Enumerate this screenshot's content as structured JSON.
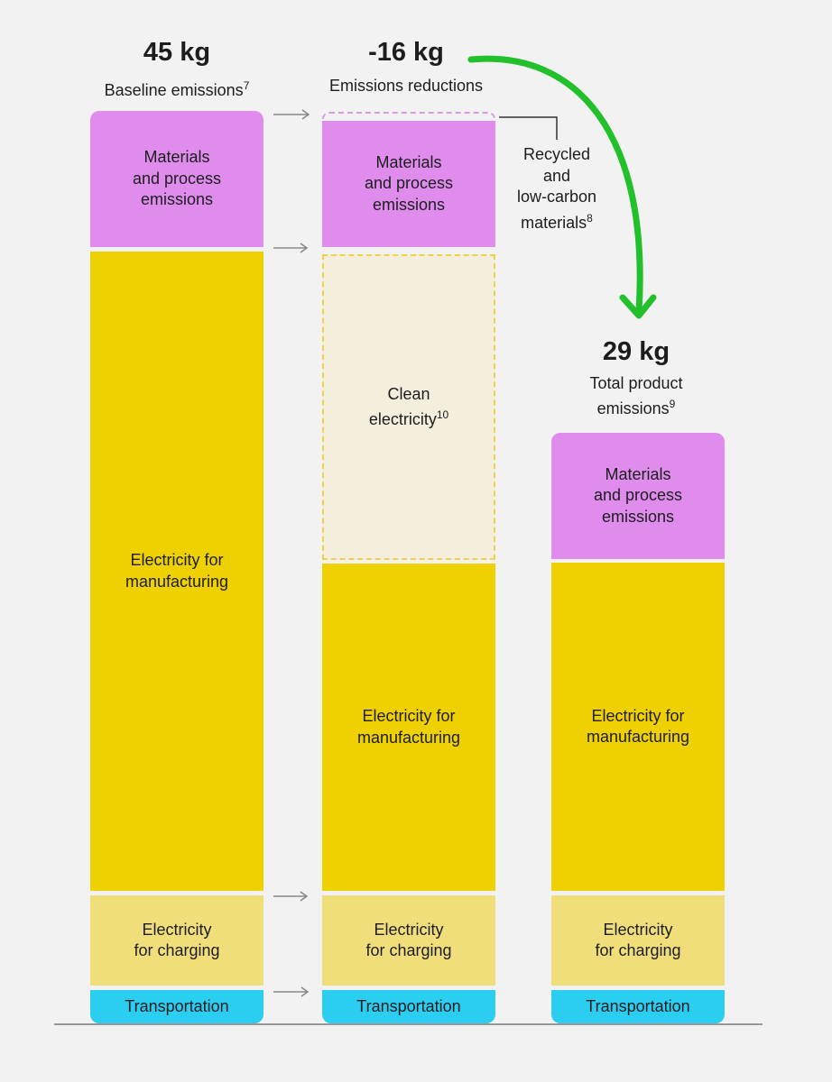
{
  "chart_data": {
    "type": "bar",
    "stacked": true,
    "title": "",
    "columns": [
      {
        "total": "45 kg",
        "label": "Baseline emissions",
        "footnote": "7",
        "segments": [
          "Materials\nand process\nemissions",
          "Electricity for\nmanufacturing",
          "Electricity\nfor charging",
          "Transportation"
        ]
      },
      {
        "total": "-16 kg",
        "label": "Emissions reductions",
        "footnote": "",
        "segments": [
          "Materials\nand process\nemissions",
          "Electricity for\nmanufacturing",
          "Electricity\nfor charging",
          "Transportation"
        ],
        "reductions": [
          {
            "label": "Clean\nelectricity",
            "footnote": "10"
          }
        ],
        "callout": {
          "label": "Recycled\nand\nlow-carbon\nmaterials",
          "footnote": "8"
        }
      },
      {
        "total": "29 kg",
        "label": "Total product\nemissions",
        "footnote": "9",
        "segments": [
          "Materials\nand process\nemissions",
          "Electricity for\nmanufacturing",
          "Electricity\nfor charging",
          "Transportation"
        ]
      }
    ],
    "colors": {
      "materials": "#df8ced",
      "manufacturing": "#efd000",
      "charging": "#f0de7a",
      "transportation": "#2bcdf1",
      "clean": "#f4eedc",
      "arrow": "#22c02a"
    }
  }
}
